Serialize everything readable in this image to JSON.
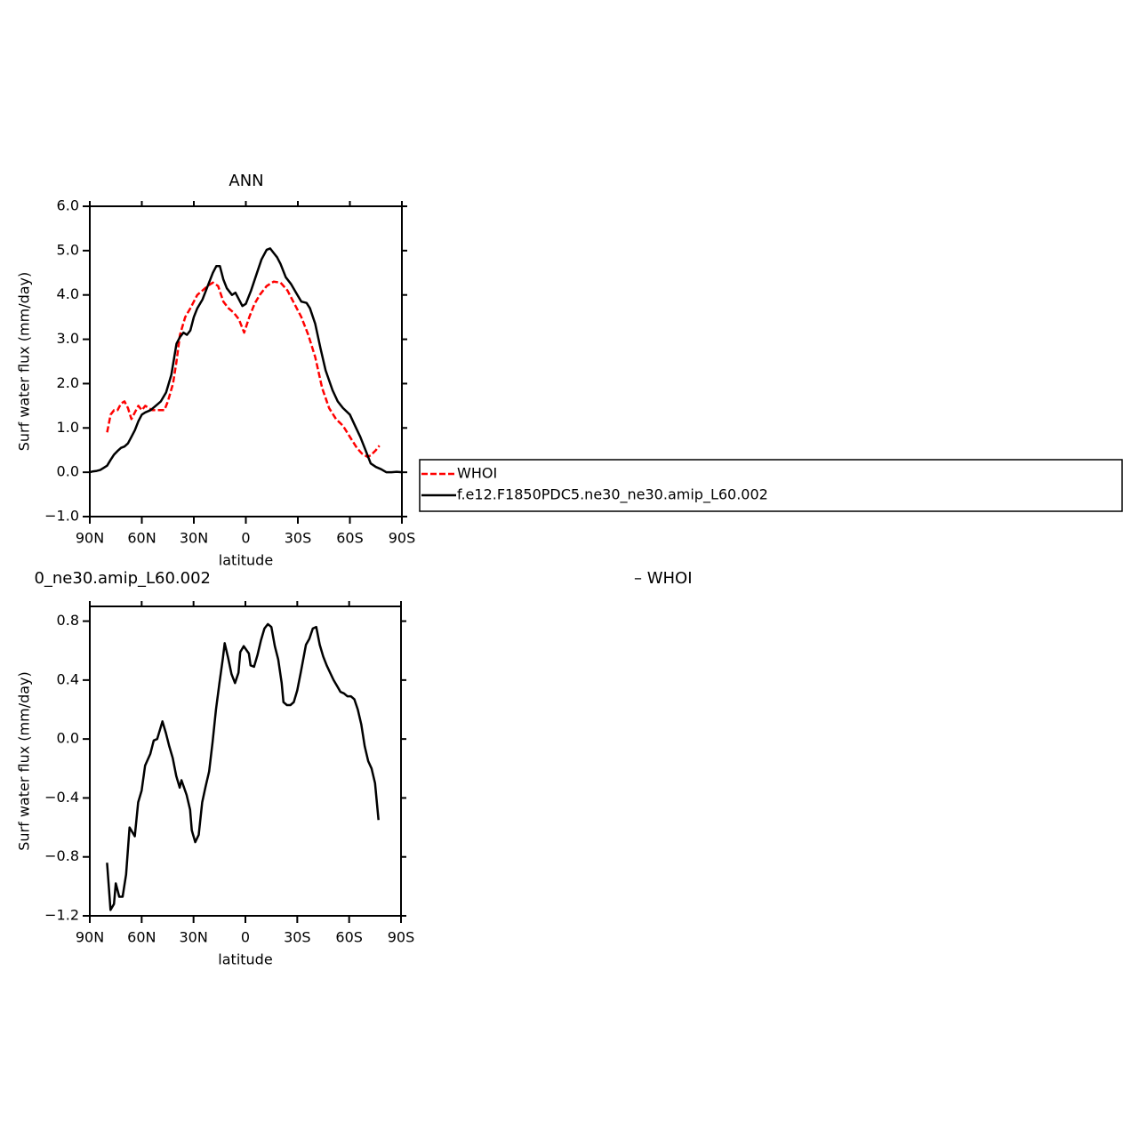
{
  "chart_data": [
    {
      "type": "line",
      "title": "ANN",
      "xlabel": "latitude",
      "ylabel": "Surf  water  flux  (mm/day)",
      "xlim": [
        90,
        -90
      ],
      "xticks": [
        {
          "value": 90,
          "label": "90N"
        },
        {
          "value": 60,
          "label": "60N"
        },
        {
          "value": 30,
          "label": "30N"
        },
        0,
        {
          "value": -30,
          "label": "30S"
        },
        {
          "value": -60,
          "label": "60S"
        },
        {
          "value": -90,
          "label": "90S"
        }
      ],
      "ylim": [
        -1,
        6
      ],
      "yticks": [
        {
          "value": 6,
          "label": "6.0"
        },
        {
          "value": 5,
          "label": "5.0"
        },
        {
          "value": 4,
          "label": "4.0"
        },
        {
          "value": 3,
          "label": "3.0"
        },
        {
          "value": 2,
          "label": "2.0"
        },
        {
          "value": 1,
          "label": "1.0"
        },
        {
          "value": 0,
          "label": "0.0"
        },
        {
          "value": -1,
          "label": "−1.0"
        }
      ],
      "legend": "right",
      "series": [
        {
          "name": "WHOI",
          "color": "#ff0000",
          "dash": true,
          "x": [
            80,
            78,
            76,
            74,
            72,
            70,
            68,
            66,
            64,
            62,
            60,
            58,
            56,
            54,
            50,
            47,
            45,
            42,
            40,
            38,
            35,
            32,
            28,
            25,
            22,
            19,
            16,
            13,
            10,
            7,
            4,
            1,
            -2,
            -5,
            -8,
            -12,
            -16,
            -20,
            -24,
            -28,
            -32,
            -36,
            -40,
            -44,
            -48,
            -52,
            -56,
            -60,
            -64,
            -67,
            -70,
            -72,
            -75,
            -77
          ],
          "values": [
            0.9,
            1.3,
            1.4,
            1.4,
            1.55,
            1.6,
            1.45,
            1.2,
            1.35,
            1.5,
            1.4,
            1.5,
            1.45,
            1.4,
            1.4,
            1.4,
            1.6,
            2.0,
            2.5,
            3.1,
            3.5,
            3.7,
            4.0,
            4.1,
            4.2,
            4.28,
            4.2,
            3.85,
            3.7,
            3.6,
            3.45,
            3.15,
            3.5,
            3.8,
            4.0,
            4.2,
            4.3,
            4.28,
            4.1,
            3.8,
            3.5,
            3.1,
            2.6,
            1.9,
            1.45,
            1.2,
            1.05,
            0.8,
            0.55,
            0.42,
            0.35,
            0.38,
            0.5,
            0.6
          ]
        },
        {
          "name": "f.e12.F1850PDC5.ne30_ne30.amip_L60.002",
          "color": "#000000",
          "dash": false,
          "x": [
            90,
            88,
            86,
            84,
            82,
            80,
            78,
            76,
            74,
            72,
            70,
            68,
            66,
            64,
            62,
            60,
            58,
            55,
            52,
            49,
            46,
            43,
            40,
            38,
            36,
            34,
            32,
            30,
            28,
            25,
            22,
            19,
            17,
            15,
            13,
            11,
            8,
            6,
            4,
            2,
            0,
            -3,
            -6,
            -9,
            -12,
            -14,
            -16,
            -18,
            -20,
            -23,
            -26,
            -29,
            -32,
            -35,
            -37,
            -40,
            -43,
            -46,
            -50,
            -53,
            -56,
            -60,
            -63,
            -66,
            -69,
            -72,
            -75,
            -78,
            -81,
            -84,
            -87,
            -90
          ],
          "values": [
            0.0,
            0.02,
            0.03,
            0.05,
            0.1,
            0.15,
            0.28,
            0.4,
            0.48,
            0.55,
            0.58,
            0.65,
            0.8,
            0.95,
            1.15,
            1.3,
            1.35,
            1.4,
            1.5,
            1.6,
            1.8,
            2.2,
            2.9,
            3.05,
            3.15,
            3.1,
            3.2,
            3.5,
            3.7,
            3.9,
            4.2,
            4.5,
            4.65,
            4.65,
            4.35,
            4.15,
            4.0,
            4.05,
            3.9,
            3.75,
            3.8,
            4.1,
            4.45,
            4.8,
            5.02,
            5.05,
            4.95,
            4.85,
            4.7,
            4.4,
            4.25,
            4.05,
            3.85,
            3.82,
            3.7,
            3.35,
            2.8,
            2.3,
            1.85,
            1.6,
            1.45,
            1.3,
            1.05,
            0.8,
            0.5,
            0.2,
            0.12,
            0.07,
            0.0,
            0.0,
            0.01,
            0.0
          ]
        }
      ]
    },
    {
      "type": "line",
      "title_parts": [
        "0_ne30.amip_L60.002",
        "–  WHOI"
      ],
      "xlabel": "latitude",
      "ylabel": "Surf  water  flux  (mm/day)",
      "xlim": [
        90,
        -90
      ],
      "xticks": [
        {
          "value": 90,
          "label": "90N"
        },
        {
          "value": 60,
          "label": "60N"
        },
        {
          "value": 30,
          "label": "30N"
        },
        0,
        {
          "value": -30,
          "label": "30S"
        },
        {
          "value": -60,
          "label": "60S"
        },
        {
          "value": -90,
          "label": "90S"
        }
      ],
      "ylim": [
        -1.2,
        0.9
      ],
      "yticks": [
        0.8,
        0.4,
        {
          "value": 0,
          "label": "0.0"
        },
        {
          "value": -0.4,
          "label": "−0.4"
        },
        {
          "value": -0.8,
          "label": "−0.8"
        },
        {
          "value": -1.2,
          "label": "−1.2"
        }
      ],
      "series": [
        {
          "color": "#000000",
          "dash": false,
          "x": [
            80,
            78,
            76,
            75,
            73,
            71,
            69,
            67,
            64,
            62,
            60,
            58,
            55,
            53,
            51,
            48,
            46,
            44,
            42,
            40,
            38,
            37,
            34,
            32,
            31,
            29,
            27,
            25,
            23,
            21,
            19,
            17,
            15,
            13,
            12,
            10,
            8,
            6,
            4,
            3,
            1,
            -2,
            -3,
            -5,
            -7,
            -9,
            -11,
            -13,
            -15,
            -17,
            -19,
            -21,
            -22,
            -24,
            -26,
            -28,
            -30,
            -32,
            -35,
            -37,
            -39,
            -41,
            -43,
            -45,
            -47,
            -49,
            -51,
            -53,
            -55,
            -57,
            -59,
            -61,
            -63,
            -65,
            -67,
            -69,
            -71,
            -73,
            -75,
            -77
          ],
          "values": [
            -0.84,
            -1.16,
            -1.12,
            -0.98,
            -1.07,
            -1.07,
            -0.92,
            -0.6,
            -0.66,
            -0.43,
            -0.35,
            -0.18,
            -0.1,
            -0.01,
            0.0,
            0.12,
            0.04,
            -0.05,
            -0.13,
            -0.25,
            -0.33,
            -0.28,
            -0.38,
            -0.48,
            -0.62,
            -0.7,
            -0.65,
            -0.43,
            -0.32,
            -0.22,
            -0.02,
            0.2,
            0.38,
            0.55,
            0.65,
            0.55,
            0.44,
            0.38,
            0.45,
            0.59,
            0.63,
            0.58,
            0.5,
            0.49,
            0.57,
            0.67,
            0.75,
            0.78,
            0.76,
            0.63,
            0.54,
            0.38,
            0.25,
            0.23,
            0.23,
            0.25,
            0.33,
            0.45,
            0.64,
            0.68,
            0.75,
            0.76,
            0.64,
            0.56,
            0.5,
            0.45,
            0.4,
            0.36,
            0.32,
            0.31,
            0.29,
            0.29,
            0.27,
            0.2,
            0.1,
            -0.05,
            -0.15,
            -0.2,
            -0.3,
            -0.55
          ]
        }
      ]
    }
  ]
}
